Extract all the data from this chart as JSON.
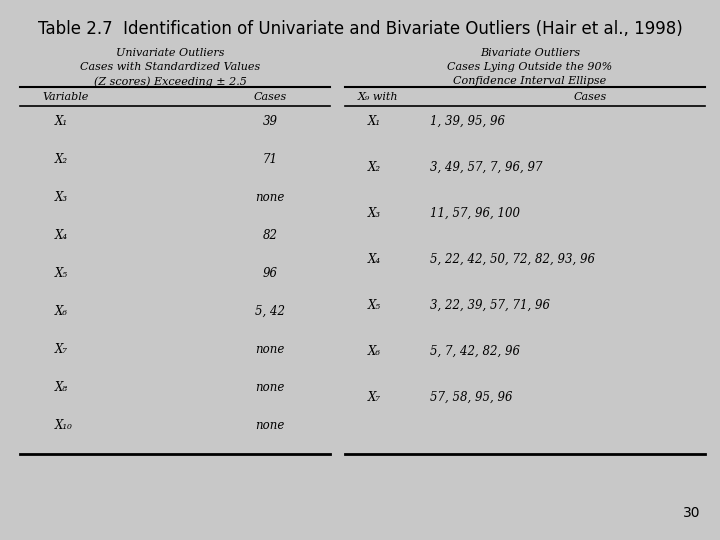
{
  "title": "Table 2.7  Identification of Univariate and Bivariate Outliers (Hair et al., 1998)",
  "bg_color": "#c8c8c8",
  "page_number": "30",
  "univariate": {
    "header_line1": "Univariate Outliers",
    "header_line2": "Cases with Standardized Values",
    "header_line3": "(Z scores) Exceeding ± 2.5",
    "col1_header": "Variable",
    "col2_header": "Cases",
    "rows": [
      [
        "X₁",
        "39"
      ],
      [
        "X₂",
        "71"
      ],
      [
        "X₃",
        "none"
      ],
      [
        "X₄",
        "82"
      ],
      [
        "X₅",
        "96"
      ],
      [
        "X₆",
        "5, 42"
      ],
      [
        "X₇",
        "none"
      ],
      [
        "X₈",
        "none"
      ],
      [
        "X₁₀",
        "none"
      ]
    ]
  },
  "bivariate": {
    "header_line1": "Bivariate Outliers",
    "header_line2": "Cases Lying Outside the 90%",
    "header_line3": "Confidence Interval Ellipse",
    "col1_header": "X₉ with",
    "col2_header": "Cases",
    "rows": [
      [
        "X₁",
        "1, 39, 95, 96"
      ],
      [
        "X₂",
        "3, 49, 57, 7, 96, 97"
      ],
      [
        "X₃",
        "11, 57, 96, 100"
      ],
      [
        "X₄",
        "5, 22, 42, 50, 72, 82, 93, 96"
      ],
      [
        "X₅",
        "3, 22, 39, 57, 71, 96"
      ],
      [
        "X₆",
        "5, 7, 42, 82, 96"
      ],
      [
        "X₇",
        "57, 58, 95, 96"
      ]
    ]
  },
  "figsize": [
    7.2,
    5.4
  ],
  "dpi": 100
}
